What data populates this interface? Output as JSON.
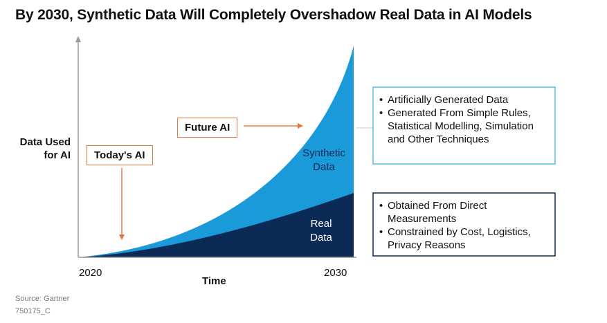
{
  "title": "By 2030,  Synthetic Data Will Completely Overshadow Real Data in AI Models",
  "colors": {
    "synthetic": "#1a9ad9",
    "real": "#0b2a55",
    "callout": "#e8773f",
    "axis": "#999999"
  },
  "chart_data": {
    "type": "area",
    "ylabel": "Data Used for AI",
    "xlabel": "Time",
    "x_ticks": [
      "2020",
      "2030"
    ],
    "xlim": [
      2020,
      2030
    ],
    "series": [
      {
        "name": "Real Data",
        "color": "#0b2a55"
      },
      {
        "name": "Synthetic Data",
        "color": "#1a9ad9"
      }
    ],
    "annotations": {
      "todays_ai": "Today's AI",
      "future_ai": "Future AI"
    },
    "area_labels": {
      "synthetic": [
        "Synthetic",
        "Data"
      ],
      "real": [
        "Real",
        "Data"
      ]
    }
  },
  "legend": {
    "synthetic": [
      "Artificially Generated Data",
      "Generated From Simple Rules, Statistical Modelling, Simulation and Other Techniques"
    ],
    "real": [
      "Obtained From Direct Measurements",
      "Constrained by Cost, Logistics, Privacy Reasons"
    ]
  },
  "footer": {
    "source": "Source: Gartner",
    "id": "750175_C"
  }
}
